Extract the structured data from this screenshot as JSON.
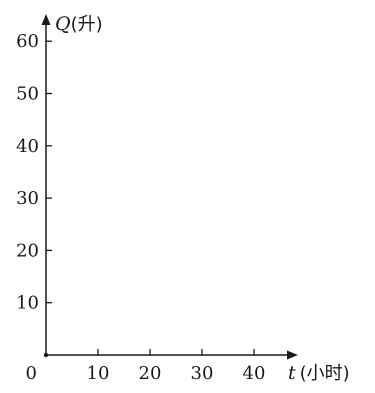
{
  "chart_data": {
    "type": "line",
    "title": "",
    "xlabel": "t",
    "xlabel_unit": "(小时)",
    "ylabel": "Q",
    "ylabel_unit": "(升)",
    "origin_label": "0",
    "x_ticks": [
      10,
      20,
      30,
      40
    ],
    "y_ticks": [
      10,
      20,
      30,
      40,
      50,
      60
    ],
    "xlim": [
      0,
      47
    ],
    "ylim": [
      0,
      62
    ],
    "grid": false,
    "series": []
  }
}
